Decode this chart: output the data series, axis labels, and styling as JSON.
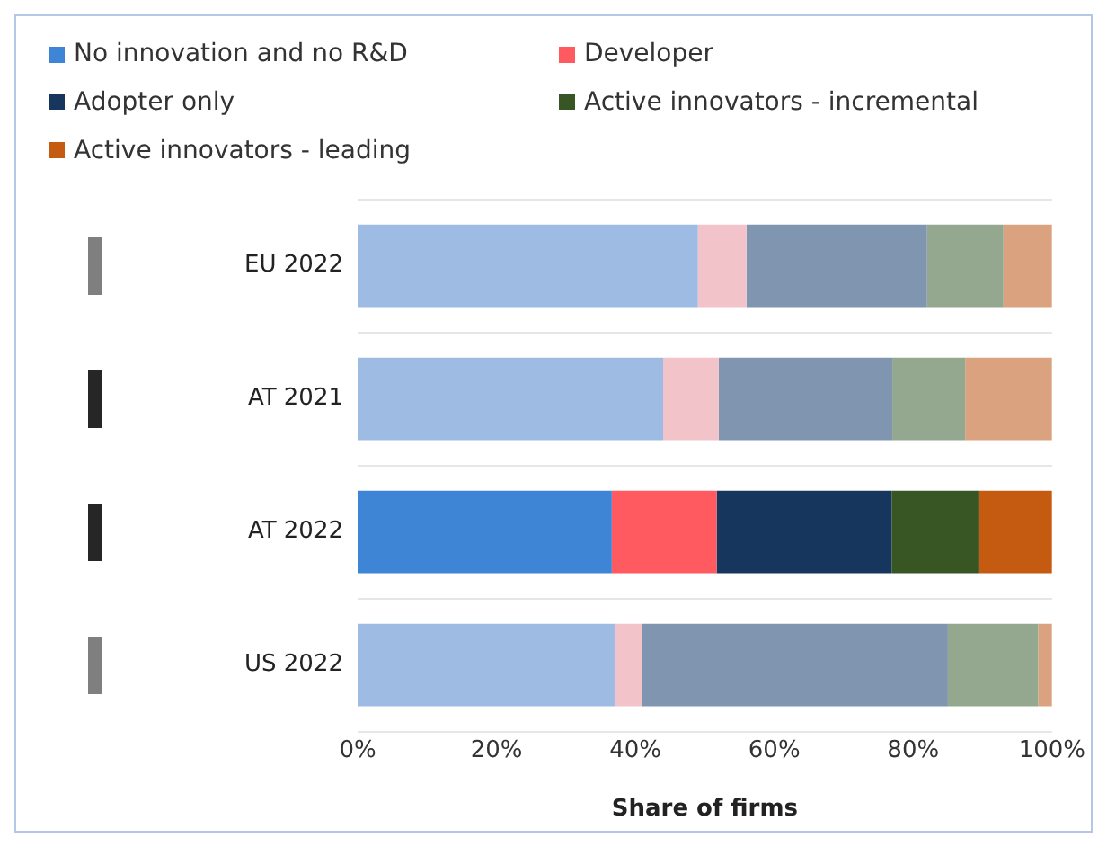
{
  "chart_data": {
    "type": "bar",
    "orientation": "horizontal",
    "stacked": true,
    "xlabel": "Share of firms",
    "categories": [
      "EU 2022",
      "AT 2021",
      "AT 2022",
      "US 2022"
    ],
    "xlim": [
      0,
      100
    ],
    "xticks": [
      {
        "value": 0,
        "label": "0%"
      },
      {
        "value": 20,
        "label": "20%"
      },
      {
        "value": 40,
        "label": "40%"
      },
      {
        "value": 60,
        "label": "60%"
      },
      {
        "value": 80,
        "label": "80%"
      },
      {
        "value": 100,
        "label": "100%"
      }
    ],
    "grid": "y",
    "legend": "top",
    "series": [
      {
        "name": "No innovation and no R&D",
        "color": "#3f85d6",
        "colors": [
          "#9dbbe3",
          "#9dbbe3",
          "#3f85d6",
          "#9dbbe3"
        ],
        "values": [
          49,
          44,
          36.6,
          37
        ]
      },
      {
        "name": "Developer",
        "color": "#ff5a5f",
        "colors": [
          "#f2c4c9",
          "#f2c4c9",
          "#ff5a5f",
          "#f2c4c9"
        ],
        "values": [
          7,
          8,
          15.1,
          4
        ]
      },
      {
        "name": "Adopter only",
        "color": "#17365d",
        "colors": [
          "#8096b0",
          "#8096b0",
          "#17365d",
          "#8096b0"
        ],
        "values": [
          26,
          25,
          25.2,
          44
        ]
      },
      {
        "name": "Active innovators - incremental",
        "color": "#375623",
        "colors": [
          "#93a88f",
          "#93a88f",
          "#375623",
          "#93a88f"
        ],
        "values": [
          11,
          10.5,
          12.5,
          13
        ]
      },
      {
        "name": "Active innovators - leading",
        "color": "#c55a11",
        "colors": [
          "#dba27f",
          "#dba27f",
          "#c55a11",
          "#dba27f"
        ],
        "values": [
          7,
          12.5,
          10.6,
          2
        ]
      }
    ]
  }
}
